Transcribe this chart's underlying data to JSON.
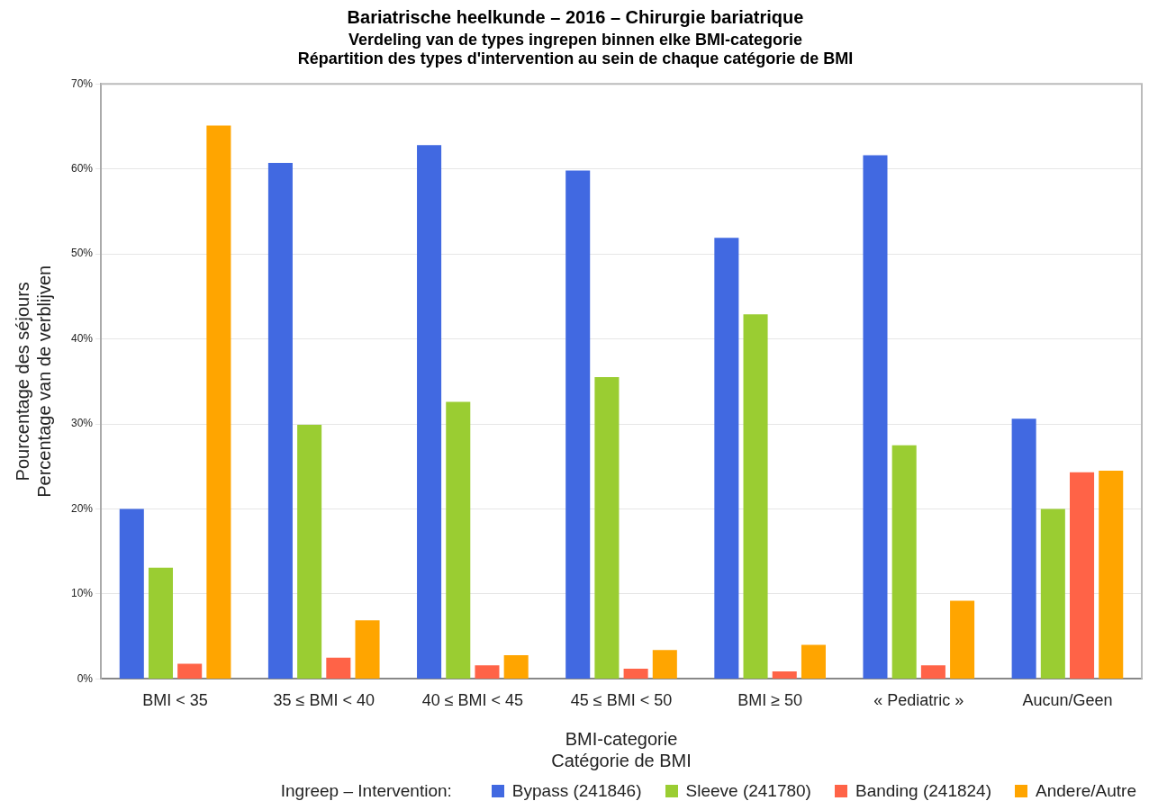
{
  "chart_data": {
    "type": "bar",
    "title": "Bariatrische heelkunde – 2016 – Chirurgie bariatrique",
    "subtitle": "Verdeling van de types ingrepen binnen elke BMI-categorie\nRépartition des types d'intervention au sein de chaque catégorie de BMI",
    "xlabel": "BMI-categorie\nCatégorie de BMI",
    "ylabel": "Pourcentage des séjours\nPercentage van de verblijven",
    "legend_title": "Ingreep – Intervention:",
    "categories": [
      "BMI < 35",
      "35 ≤ BMI < 40",
      "40 ≤ BMI < 45",
      "45 ≤ BMI < 50",
      "BMI ≥ 50",
      "« Pediatric »",
      "Aucun/Geen"
    ],
    "series": [
      {
        "name": "Bypass (241846)",
        "color": "#4169e1",
        "values": [
          20.0,
          60.7,
          62.8,
          59.8,
          51.9,
          61.6,
          30.6
        ]
      },
      {
        "name": "Sleeve (241780)",
        "color": "#9acd32",
        "values": [
          13.1,
          29.9,
          32.6,
          35.5,
          42.9,
          27.5,
          20.0
        ]
      },
      {
        "name": "Banding (241824)",
        "color": "#ff6347",
        "values": [
          1.8,
          2.5,
          1.6,
          1.2,
          0.9,
          1.6,
          24.3
        ]
      },
      {
        "name": "Andere/Autre",
        "color": "#ffa500",
        "values": [
          65.1,
          6.9,
          2.8,
          3.4,
          4.0,
          9.2,
          24.5
        ]
      }
    ],
    "ylim": [
      0,
      70
    ],
    "yticks": [
      {
        "value": 0,
        "label": "0%"
      },
      {
        "value": 10,
        "label": "10%"
      },
      {
        "value": 20,
        "label": "20%"
      },
      {
        "value": 30,
        "label": "30%"
      },
      {
        "value": 40,
        "label": "40%"
      },
      {
        "value": 50,
        "label": "50%"
      },
      {
        "value": 60,
        "label": "60%"
      },
      {
        "value": 70,
        "label": "70%"
      }
    ],
    "grid": "y",
    "legend": "bottom"
  }
}
